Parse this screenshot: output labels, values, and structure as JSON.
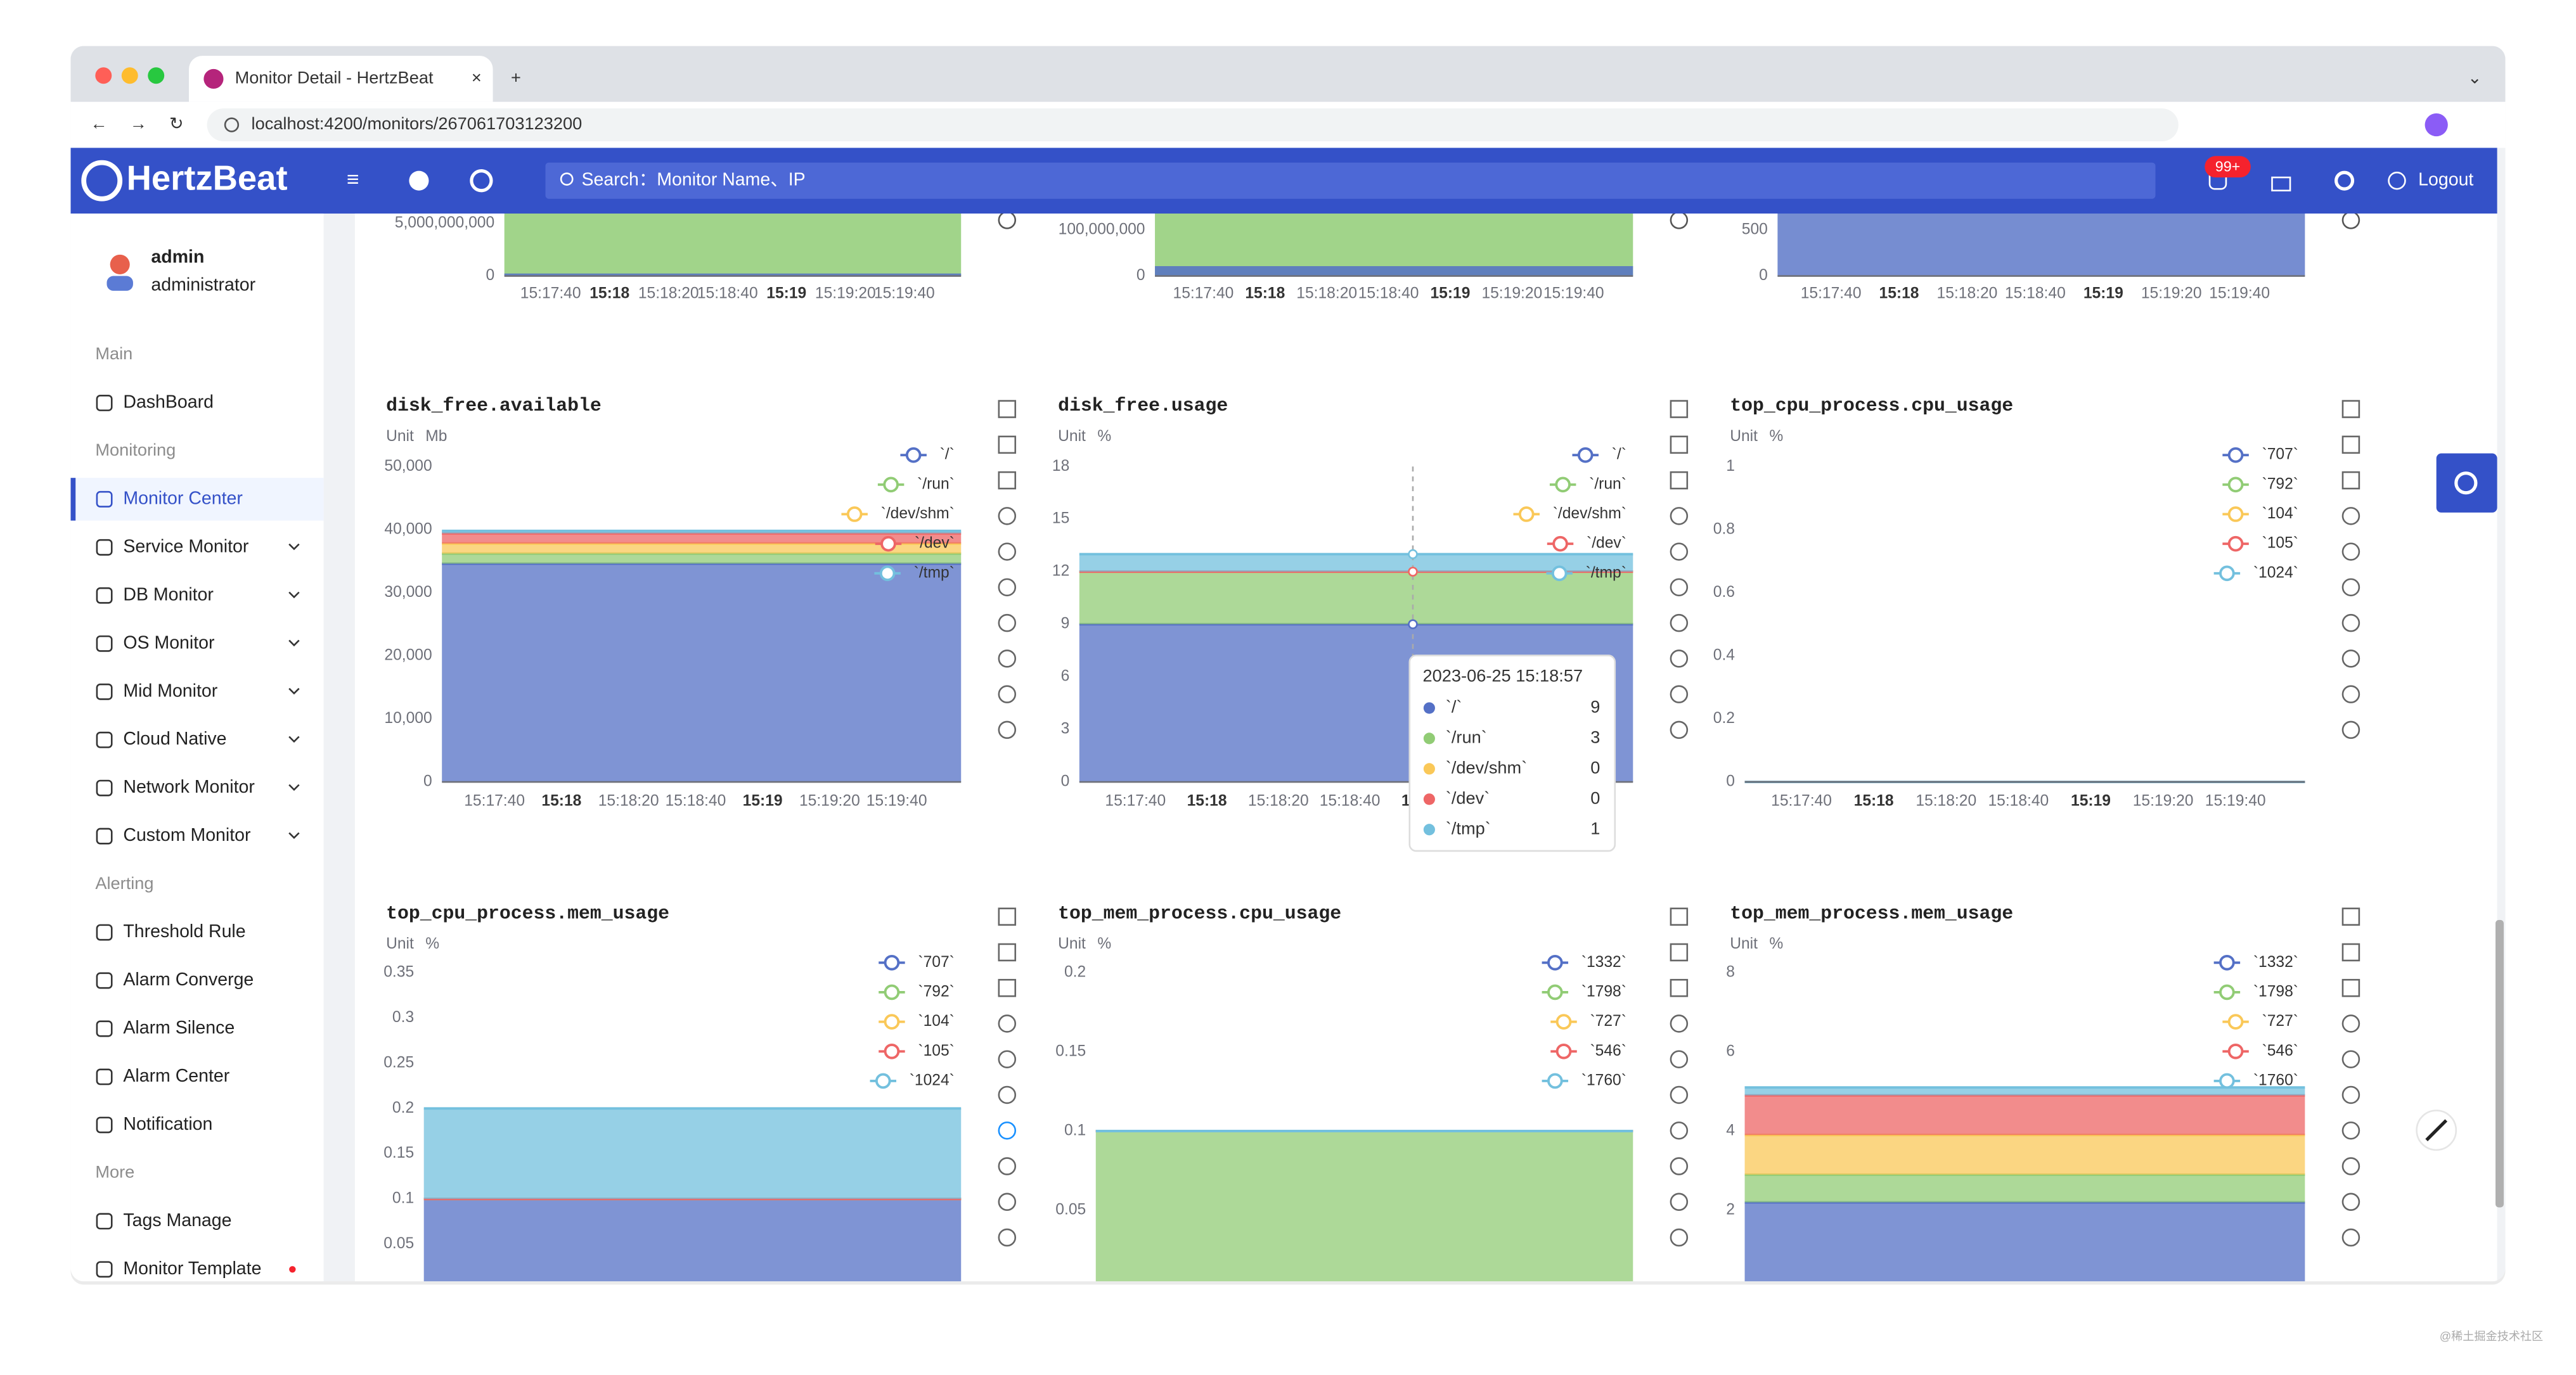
{
  "browser": {
    "tab_title": "Monitor Detail - HertzBeat",
    "url": "localhost:4200/monitors/267061703123200"
  },
  "header": {
    "logo": "HertzBeat",
    "search_placeholder": "Search：Monitor Name、IP",
    "notification_badge": "99+",
    "logout": "Logout"
  },
  "sidebar": {
    "user": {
      "name": "admin",
      "role": "administrator"
    },
    "sections": [
      {
        "title": "Main",
        "items": [
          {
            "label": "DashBoard"
          }
        ]
      },
      {
        "title": "Monitoring",
        "items": [
          {
            "label": "Monitor Center",
            "active": true
          },
          {
            "label": "Service Monitor",
            "expandable": true
          },
          {
            "label": "DB Monitor",
            "expandable": true
          },
          {
            "label": "OS Monitor",
            "expandable": true
          },
          {
            "label": "Mid Monitor",
            "expandable": true
          },
          {
            "label": "Cloud Native",
            "expandable": true
          },
          {
            "label": "Network Monitor",
            "expandable": true
          },
          {
            "label": "Custom Monitor",
            "expandable": true
          }
        ]
      },
      {
        "title": "Alerting",
        "items": [
          {
            "label": "Threshold Rule"
          },
          {
            "label": "Alarm Converge"
          },
          {
            "label": "Alarm Silence"
          },
          {
            "label": "Alarm Center"
          },
          {
            "label": "Notification"
          }
        ]
      },
      {
        "title": "More",
        "items": [
          {
            "label": "Tags Manage"
          },
          {
            "label": "Monitor Template",
            "badge": true
          }
        ]
      }
    ]
  },
  "time_labels": [
    "15:17:40",
    "15:18",
    "15:18:20",
    "15:18:40",
    "15:19",
    "15:19:20",
    "15:19:40"
  ],
  "unit_label": "Unit",
  "top_row": [
    {
      "ylim": [
        0,
        6000000000
      ],
      "yticks": [
        0,
        {
          "value": 5000000000,
          "label": "5,000,000,000"
        }
      ]
    },
    {
      "ylim": [
        0,
        150000000
      ],
      "yticks": [
        0,
        {
          "value": 100000000,
          "label": "100,000,000"
        }
      ]
    },
    {
      "ylim": [
        0,
        750
      ],
      "yticks": [
        0,
        500
      ]
    }
  ],
  "charts": [
    {
      "type": "area",
      "title": "disk_free.available",
      "unit": "Mb",
      "ylim": [
        0,
        50000
      ],
      "yticks": [
        0,
        {
          "value": 10000,
          "label": "10,000"
        },
        {
          "value": 20000,
          "label": "20,000"
        },
        {
          "value": 30000,
          "label": "30,000"
        },
        {
          "value": 40000,
          "label": "40,000"
        },
        {
          "value": 50000,
          "label": "50,000"
        }
      ],
      "series": [
        {
          "name": "`/`",
          "color": "#5470c6",
          "values": [
            34600
          ]
        },
        {
          "name": "`/run`",
          "color": "#91cc75",
          "values": [
            1600
          ]
        },
        {
          "name": "`/dev/shm`",
          "color": "#fac858",
          "values": [
            1600
          ]
        },
        {
          "name": "`/dev`",
          "color": "#ee6666",
          "values": [
            1600
          ]
        },
        {
          "name": "`/tmp`",
          "color": "#73c0de",
          "values": [
            400
          ]
        }
      ]
    },
    {
      "type": "area",
      "title": "disk_free.usage",
      "unit": "%",
      "ylim": [
        0,
        18
      ],
      "yticks": [
        0,
        3,
        6,
        9,
        12,
        15,
        18
      ],
      "series": [
        {
          "name": "`/`",
          "color": "#5470c6",
          "values": [
            9
          ]
        },
        {
          "name": "`/run`",
          "color": "#91cc75",
          "values": [
            3
          ]
        },
        {
          "name": "`/dev/shm`",
          "color": "#fac858",
          "values": [
            0
          ]
        },
        {
          "name": "`/dev`",
          "color": "#ee6666",
          "values": [
            0
          ]
        },
        {
          "name": "`/tmp`",
          "color": "#73c0de",
          "values": [
            1
          ]
        }
      ],
      "tooltip": {
        "title": "2023-06-25 15:18:57"
      }
    },
    {
      "type": "area",
      "title": "top_cpu_process.cpu_usage",
      "unit": "%",
      "ylim": [
        0,
        1
      ],
      "yticks": [
        0,
        0.2,
        0.4,
        0.6,
        0.8,
        1
      ],
      "series": [
        {
          "name": "`707`",
          "color": "#5470c6",
          "values": [
            0
          ]
        },
        {
          "name": "`792`",
          "color": "#91cc75",
          "values": [
            0
          ]
        },
        {
          "name": "`104`",
          "color": "#fac858",
          "values": [
            0
          ]
        },
        {
          "name": "`105`",
          "color": "#ee6666",
          "values": [
            0
          ]
        },
        {
          "name": "`1024`",
          "color": "#73c0de",
          "values": [
            0
          ]
        }
      ]
    },
    {
      "type": "area",
      "title": "top_cpu_process.mem_usage",
      "unit": "%",
      "ylim": [
        0,
        0.35
      ],
      "yticks": [
        0.05,
        0.1,
        0.15,
        0.2,
        0.25,
        0.3,
        0.35
      ],
      "series": [
        {
          "name": "`707`",
          "color": "#5470c6",
          "values": [
            0.1
          ]
        },
        {
          "name": "`792`",
          "color": "#91cc75",
          "values": [
            0
          ]
        },
        {
          "name": "`104`",
          "color": "#fac858",
          "values": [
            0
          ]
        },
        {
          "name": "`105`",
          "color": "#ee6666",
          "values": [
            0
          ]
        },
        {
          "name": "`1024`",
          "color": "#73c0de",
          "values": [
            0.1
          ]
        }
      ]
    },
    {
      "type": "area",
      "title": "top_mem_process.cpu_usage",
      "unit": "%",
      "ylim": [
        0,
        0.2
      ],
      "yticks": [
        0.05,
        0.1,
        0.15,
        0.2
      ],
      "series": [
        {
          "name": "`1332`",
          "color": "#5470c6",
          "values": [
            0
          ]
        },
        {
          "name": "`1798`",
          "color": "#91cc75",
          "values": [
            0.1
          ]
        },
        {
          "name": "`727`",
          "color": "#fac858",
          "values": [
            0
          ]
        },
        {
          "name": "`546`",
          "color": "#ee6666",
          "values": [
            0
          ]
        },
        {
          "name": "`1760`",
          "color": "#73c0de",
          "values": [
            0
          ]
        }
      ]
    },
    {
      "type": "area",
      "title": "top_mem_process.mem_usage",
      "unit": "%",
      "ylim": [
        0,
        8
      ],
      "yticks": [
        2,
        4,
        6,
        8
      ],
      "series": [
        {
          "name": "`1332`",
          "color": "#5470c6",
          "values": [
            2.2
          ]
        },
        {
          "name": "`1798`",
          "color": "#91cc75",
          "values": [
            0.7
          ]
        },
        {
          "name": "`727`",
          "color": "#fac858",
          "values": [
            1
          ]
        },
        {
          "name": "`546`",
          "color": "#ee6666",
          "values": [
            1
          ]
        },
        {
          "name": "`1760`",
          "color": "#73c0de",
          "values": [
            0.2
          ]
        }
      ]
    }
  ],
  "watermark": "@稀土掘金技术社区"
}
